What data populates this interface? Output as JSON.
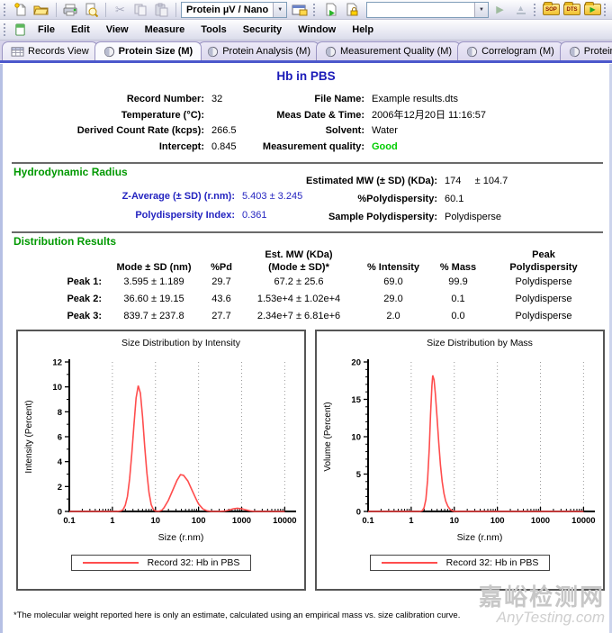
{
  "toolbar": {
    "preset_dropdown": "Protein µV / Nano",
    "run_dropdown": "",
    "sop_label": "SOP",
    "dts_label": "DTS"
  },
  "icons": {
    "dropdown_arrow": "▼",
    "cut": "✂",
    "play": "▶",
    "eject_triangle": "▲",
    "export_arrow": "▶"
  },
  "menu": {
    "items": [
      "File",
      "Edit",
      "View",
      "Measure",
      "Tools",
      "Security",
      "Window",
      "Help"
    ]
  },
  "tabs": [
    {
      "label": "Records View"
    },
    {
      "label": "Protein Size (M)",
      "active": true
    },
    {
      "label": "Protein Analysis (M)"
    },
    {
      "label": "Measurement Quality (M)"
    },
    {
      "label": "Correlogram (M)"
    },
    {
      "label": "Protein Wizard (M)"
    },
    {
      "label": ""
    }
  ],
  "report": {
    "title": "Hb in PBS",
    "info": {
      "rows": [
        {
          "l_label": "Record Number:",
          "l_value": "32",
          "r_label": "File Name:",
          "r_value": "Example results.dts"
        },
        {
          "l_label": "Temperature (°C):",
          "l_value": "",
          "r_label": "Meas Date & Time:",
          "r_value": "2006年12月20日 11:16:57"
        },
        {
          "l_label": "Derived Count Rate (kcps):",
          "l_value": "266.5",
          "r_label": "Solvent:",
          "r_value": "Water"
        },
        {
          "l_label": "Intercept:",
          "l_value": "0.845",
          "r_label": "Measurement quality:",
          "r_value": "Good"
        }
      ]
    },
    "hydro": {
      "heading": "Hydrodynamic Radius",
      "left": [
        {
          "label": "Z-Average (± SD) (r.nm):",
          "value": "5.403 ± 3.245"
        },
        {
          "label": "Polydispersity Index:",
          "value": "0.361"
        }
      ],
      "right": [
        {
          "label": "Estimated MW (± SD) (KDa):",
          "value": "174     ± 104.7"
        },
        {
          "label": "%Polydispersity:",
          "value": "60.1"
        },
        {
          "label": "Sample Polydispersity:",
          "value": "Polydisperse"
        }
      ]
    },
    "distribution": {
      "heading": "Distribution Results",
      "headers": {
        "c1_l1": "",
        "c1_l2": "",
        "c2_l1": "",
        "c2_l2": "Mode ± SD (nm)",
        "c3_l1": "",
        "c3_l2": "%Pd",
        "c4_l1": "Est. MW (KDa)",
        "c4_l2": "(Mode ± SD)*",
        "c5_l1": "",
        "c5_l2": "% Intensity",
        "c6_l1": "",
        "c6_l2": "% Mass",
        "c7_l1": "Peak",
        "c7_l2": "Polydispersity"
      },
      "rows": [
        {
          "name": "Peak 1:",
          "mode": "3.595 ± 1.189",
          "pd": "29.7",
          "mw": "67.2 ± 25.6",
          "intensity": "69.0",
          "mass": "99.9",
          "poly": "Polydisperse"
        },
        {
          "name": "Peak 2:",
          "mode": "36.60 ± 19.15",
          "pd": "43.6",
          "mw": "1.53e+4 ± 1.02e+4",
          "intensity": "29.0",
          "mass": "0.1",
          "poly": "Polydisperse"
        },
        {
          "name": "Peak 3:",
          "mode": "839.7 ± 237.8",
          "pd": "27.7",
          "mw": "2.34e+7 ± 6.81e+6",
          "intensity": "2.0",
          "mass": "0.0",
          "poly": "Polydisperse"
        }
      ]
    },
    "footnote": "*The molecular weight reported here is only an estimate, calculated using an empirical mass vs. size calibration curve."
  },
  "chart_data": [
    {
      "type": "line",
      "title": "Size Distribution by Intensity",
      "xlabel": "Size (r.nm)",
      "ylabel": "Intensity (Percent)",
      "xscale": "log",
      "xlim": [
        0.1,
        10000
      ],
      "ylim": [
        0,
        12
      ],
      "yticks": [
        0,
        2,
        4,
        6,
        8,
        10,
        12
      ],
      "yminor": 1,
      "xtick_labels": [
        "0.1",
        "1",
        "10",
        "100",
        "1000",
        "10000"
      ],
      "grid": "vertical-dotted-at-decades",
      "legend": "Record 32: Hb in PBS",
      "legend_position": "bottom",
      "color": "#ff4d4d",
      "points_logx_y": [
        [
          -1,
          0
        ],
        [
          -0.6,
          0
        ],
        [
          -0.2,
          0
        ],
        [
          0.1,
          0
        ],
        [
          0.2,
          0.05
        ],
        [
          0.25,
          0.15
        ],
        [
          0.3,
          0.5
        ],
        [
          0.35,
          1.2
        ],
        [
          0.4,
          2.6
        ],
        [
          0.45,
          4.6
        ],
        [
          0.5,
          6.9
        ],
        [
          0.55,
          9.1
        ],
        [
          0.6,
          10.1
        ],
        [
          0.65,
          9.5
        ],
        [
          0.7,
          7.6
        ],
        [
          0.75,
          5.2
        ],
        [
          0.8,
          3.1
        ],
        [
          0.85,
          1.5
        ],
        [
          0.9,
          0.55
        ],
        [
          0.95,
          0.15
        ],
        [
          1.0,
          0.03
        ],
        [
          1.08,
          0.02
        ],
        [
          1.15,
          0.1
        ],
        [
          1.2,
          0.3
        ],
        [
          1.3,
          0.9
        ],
        [
          1.4,
          1.7
        ],
        [
          1.5,
          2.5
        ],
        [
          1.58,
          2.95
        ],
        [
          1.65,
          2.9
        ],
        [
          1.75,
          2.45
        ],
        [
          1.85,
          1.7
        ],
        [
          1.95,
          0.95
        ],
        [
          2.0,
          0.6
        ],
        [
          2.1,
          0.2
        ],
        [
          2.2,
          0.05
        ],
        [
          2.3,
          0
        ],
        [
          2.45,
          0
        ],
        [
          2.6,
          0.03
        ],
        [
          2.7,
          0.1
        ],
        [
          2.8,
          0.2
        ],
        [
          2.9,
          0.26
        ],
        [
          3.0,
          0.22
        ],
        [
          3.1,
          0.12
        ],
        [
          3.2,
          0.04
        ],
        [
          3.3,
          0
        ],
        [
          3.6,
          0
        ],
        [
          4.0,
          0
        ]
      ]
    },
    {
      "type": "line",
      "title": "Size Distribution by Mass",
      "xlabel": "Size (r.nm)",
      "ylabel": "Volume (Percent)",
      "xscale": "log",
      "xlim": [
        0.1,
        10000
      ],
      "ylim": [
        0,
        20
      ],
      "yticks": [
        0,
        5,
        10,
        15,
        20
      ],
      "yminor": 1,
      "xtick_labels": [
        "0.1",
        "1",
        "10",
        "100",
        "1000",
        "10000"
      ],
      "grid": "vertical-dotted-at-decades",
      "legend": "Record 32: Hb in PBS",
      "legend_position": "bottom",
      "color": "#ff4d4d",
      "points_logx_y": [
        [
          -1,
          0
        ],
        [
          -0.4,
          0
        ],
        [
          0,
          0
        ],
        [
          0.2,
          0
        ],
        [
          0.26,
          0.1
        ],
        [
          0.3,
          0.5
        ],
        [
          0.34,
          1.6
        ],
        [
          0.38,
          4.2
        ],
        [
          0.42,
          8.5
        ],
        [
          0.45,
          13.0
        ],
        [
          0.48,
          16.8
        ],
        [
          0.5,
          18.2
        ],
        [
          0.53,
          17.6
        ],
        [
          0.56,
          15.8
        ],
        [
          0.6,
          12.6
        ],
        [
          0.64,
          9.2
        ],
        [
          0.68,
          6.2
        ],
        [
          0.72,
          4.0
        ],
        [
          0.76,
          2.4
        ],
        [
          0.8,
          1.4
        ],
        [
          0.85,
          0.7
        ],
        [
          0.9,
          0.3
        ],
        [
          0.95,
          0.1
        ],
        [
          1.0,
          0.03
        ],
        [
          1.1,
          0
        ],
        [
          1.4,
          0
        ],
        [
          2.0,
          0
        ],
        [
          3.0,
          0
        ],
        [
          4.0,
          0
        ]
      ]
    }
  ],
  "watermark": {
    "line1": "嘉峪检测网",
    "line2": "AnyTesting.com"
  },
  "colors": {
    "title_blue": "#1a1ab8",
    "heading_green": "#009900",
    "accent_blue": "#2424c0",
    "good_green": "#00cc00",
    "series_red": "#ff4d4d",
    "tab_strip_blue": "#4c58cc"
  }
}
